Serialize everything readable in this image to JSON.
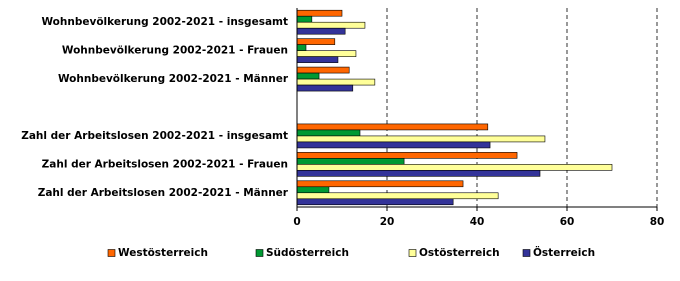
{
  "chart_data": {
    "type": "barh",
    "categories": [
      "Wohnbevölkerung 2002-2021 - insgesamt",
      "Wohnbevölkerung 2002-2021 - Frauen",
      "Wohnbevölkerung 2002-2021 - Männer",
      null,
      "Zahl der Arbeitslosen 2002-2021 - insgesamt",
      "Zahl der Arbeitslosen 2002-2021 - Frauen",
      "Zahl der Arbeitslosen 2002-2021 - Männer"
    ],
    "series": [
      {
        "name": "Westösterreich",
        "color": "#ff6600",
        "values": [
          10,
          8.4,
          11.6,
          null,
          42.4,
          48.9,
          36.9
        ]
      },
      {
        "name": "Südösterreich",
        "color": "#009933",
        "values": [
          3.3,
          2,
          4.9,
          null,
          14,
          23.8,
          7.1
        ]
      },
      {
        "name": "Ostösterreich",
        "color": "#ffff99",
        "values": [
          15.1,
          13.1,
          17.3,
          null,
          55.1,
          70,
          44.7
        ]
      },
      {
        "name": "Österreich",
        "color": "#333399",
        "values": [
          10.7,
          9.1,
          12.4,
          null,
          42.9,
          54,
          34.7
        ]
      }
    ],
    "xlim": [
      0,
      80
    ],
    "xticks": [
      0,
      20,
      40,
      60,
      80
    ],
    "grid": true,
    "legend": "bottom"
  }
}
